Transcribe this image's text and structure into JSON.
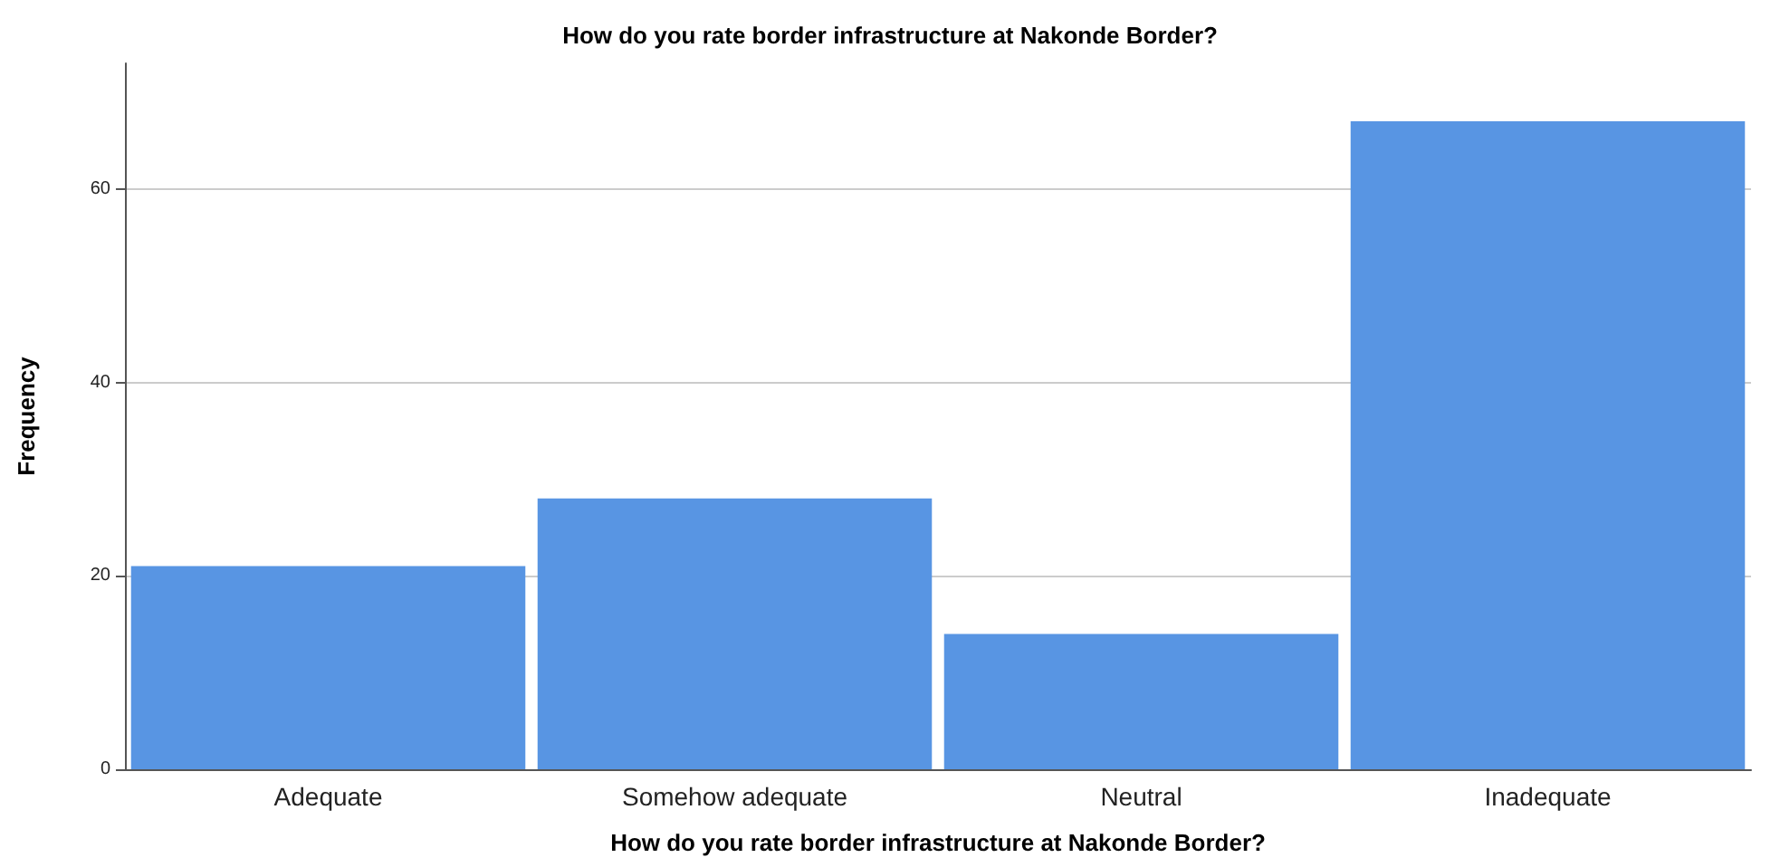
{
  "chart_data": {
    "type": "bar",
    "title": "How do you rate border infrastructure at Nakonde Border?",
    "xlabel": "How do you rate border infrastructure at Nakonde Border?",
    "ylabel": "Frequency",
    "categories": [
      "Adequate",
      "Somehow adequate",
      "Neutral",
      "Inadequate"
    ],
    "values": [
      21,
      28,
      14,
      67
    ],
    "color": "#5895e3",
    "ylim": [
      0,
      73
    ],
    "yticks": [
      0,
      20,
      40,
      60
    ],
    "grid": "y"
  }
}
